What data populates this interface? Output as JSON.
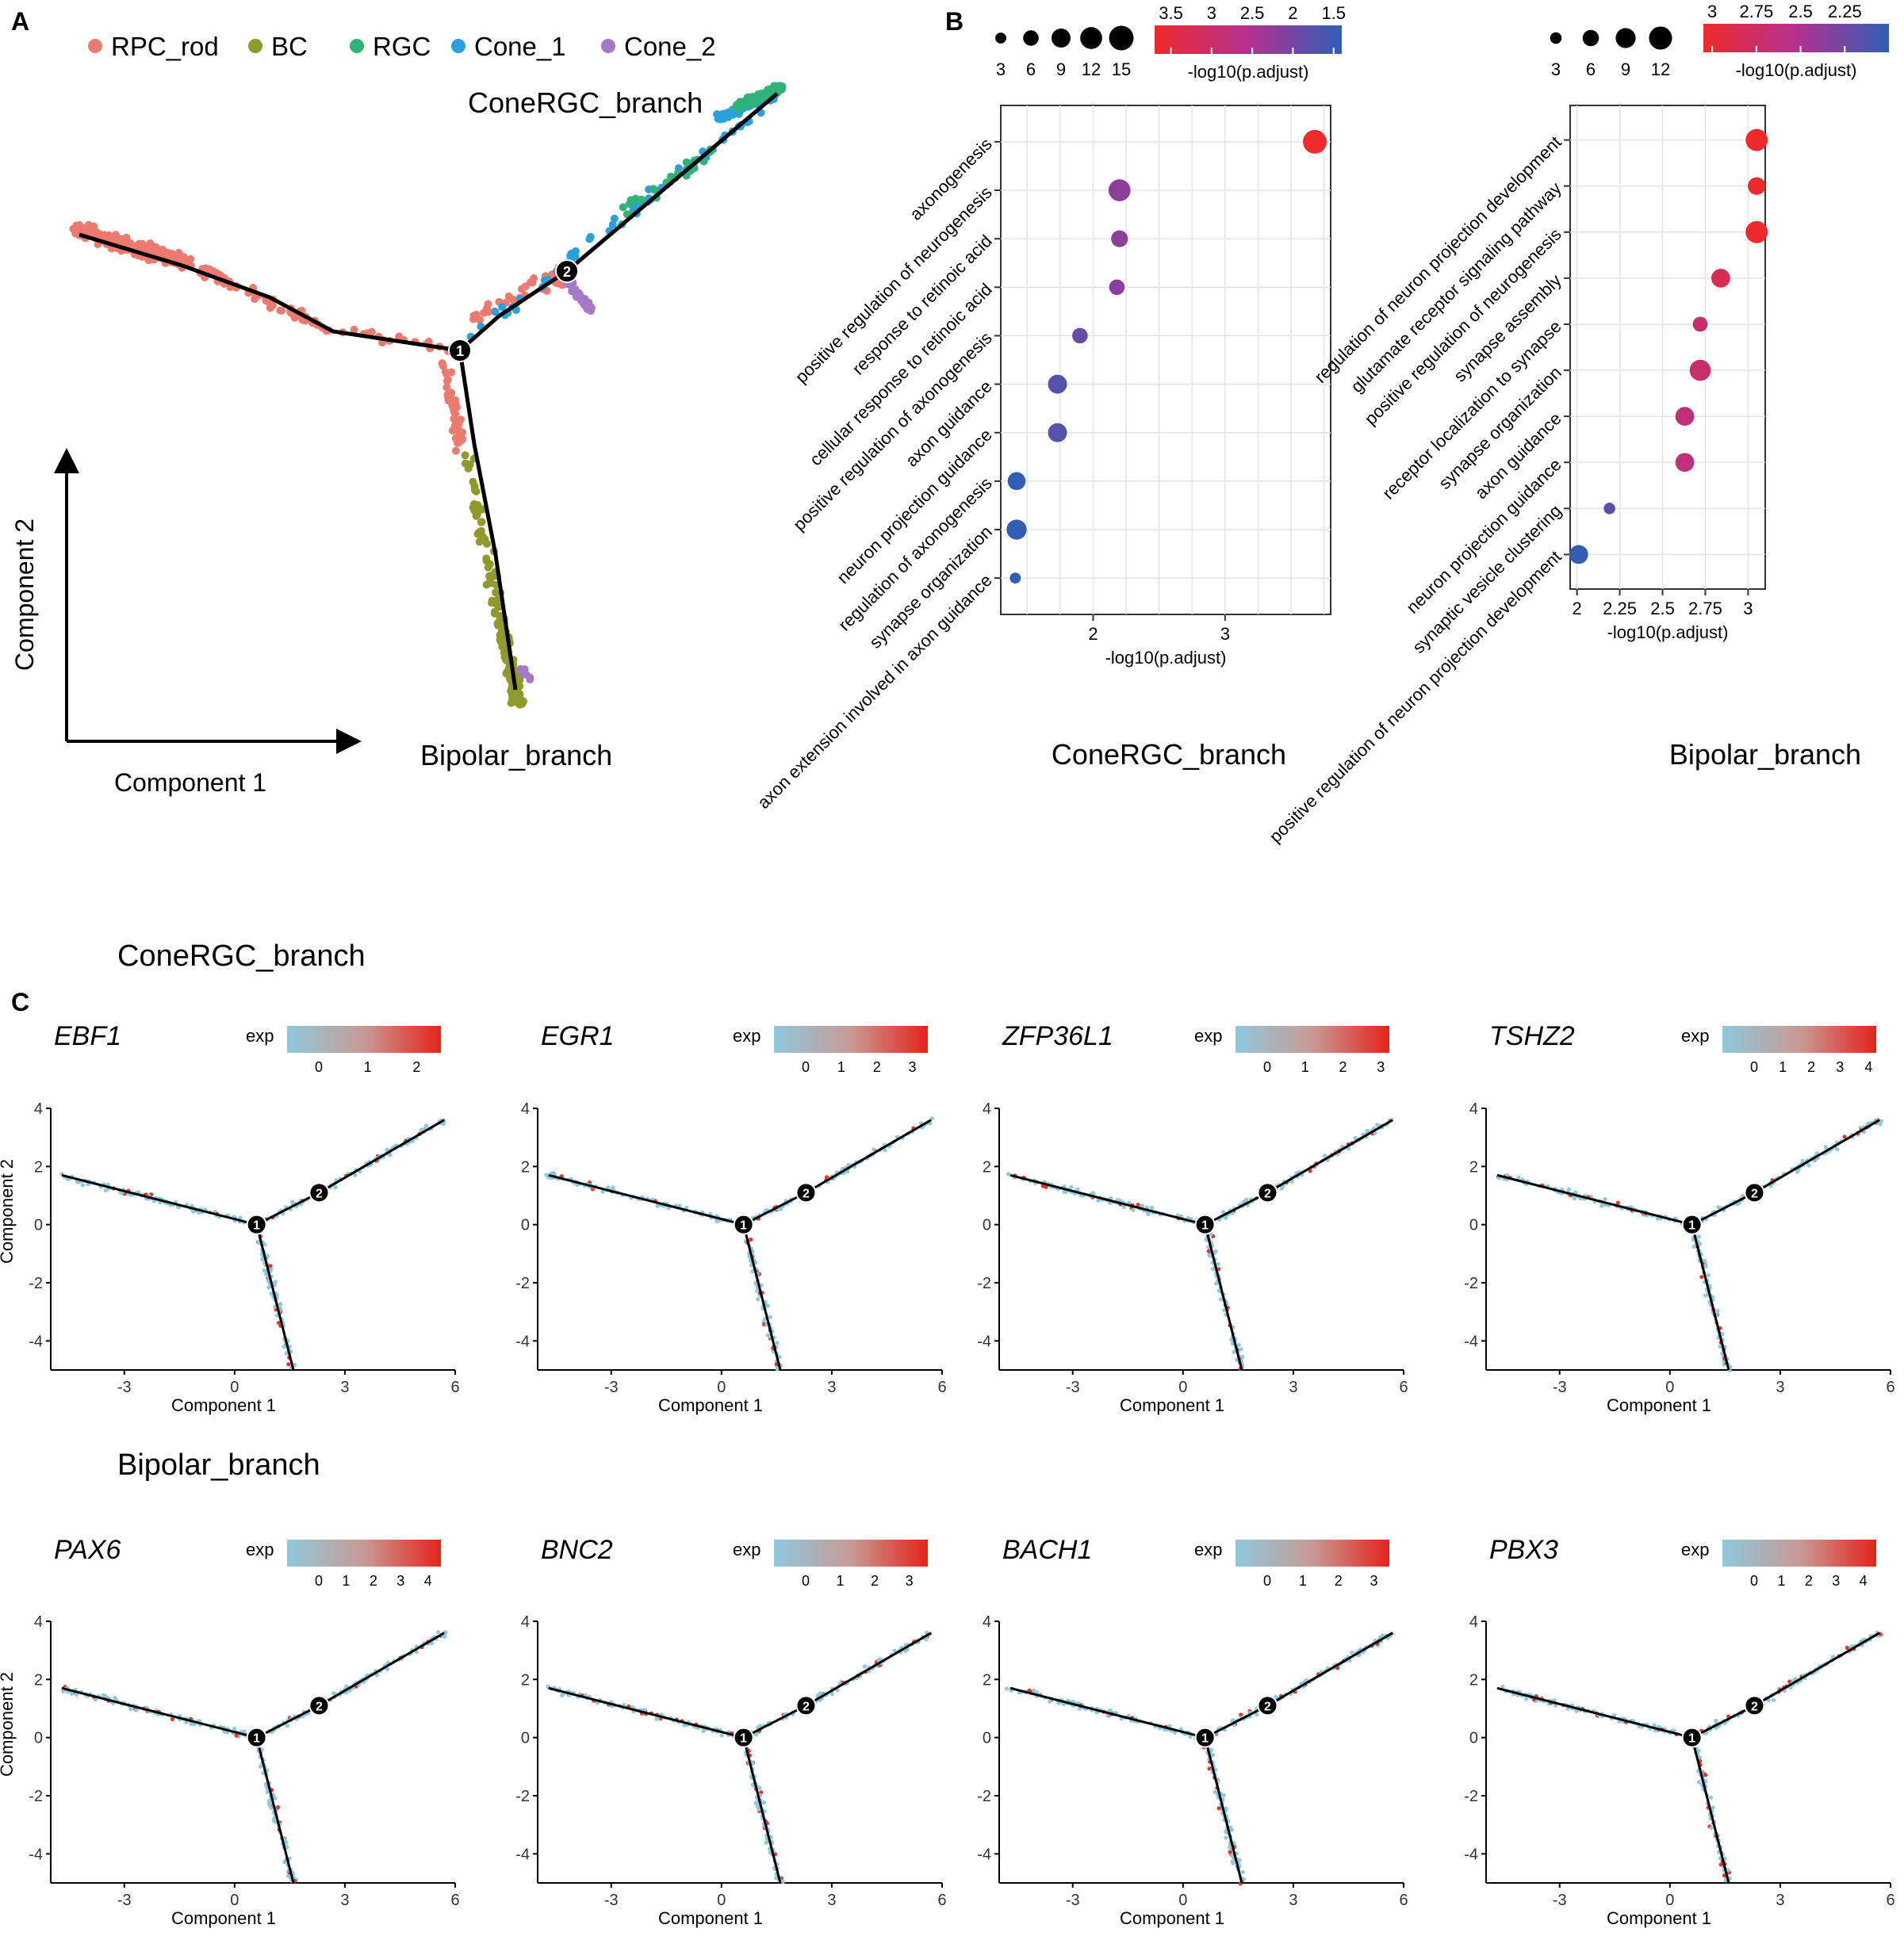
{
  "panels": {
    "A": "A",
    "B": "B",
    "C": "C"
  },
  "panelA": {
    "legend": [
      {
        "label": "RPC_rod",
        "color": "#ec7a6e"
      },
      {
        "label": "BC",
        "color": "#8f9a2a"
      },
      {
        "label": "RGC",
        "color": "#2fb37a"
      },
      {
        "label": "Cone_1",
        "color": "#2aa0dd"
      },
      {
        "label": "Cone_2",
        "color": "#a679c6"
      }
    ],
    "branch_top": "ConeRGC_branch",
    "branch_bottom": "Bipolar_branch",
    "axis_x": "Component 1",
    "axis_y": "Component 2",
    "node1": "1",
    "node2": "2"
  },
  "chart_data": [
    {
      "type": "scatter",
      "panel": "B-left",
      "title": "ConeRGC_branch",
      "xlabel": "-log10(p.adjust)",
      "xlim": [
        1.3,
        3.8
      ],
      "xticks": [
        2,
        3
      ],
      "size_legend": {
        "values": [
          3,
          6,
          9,
          12,
          15
        ]
      },
      "color_legend": {
        "title": "-log10(p.adjust)",
        "ticks": [
          3.5,
          3.0,
          2.5,
          2.0,
          1.5
        ],
        "range": [
          3.7,
          1.4
        ]
      },
      "terms": [
        {
          "term": "axonogenesis",
          "x": 3.68,
          "count": 14
        },
        {
          "term": "positive regulation of neurogenesis",
          "x": 2.2,
          "count": 12
        },
        {
          "term": "response to retinoic acid",
          "x": 2.2,
          "count": 7
        },
        {
          "term": "cellular response to retinoic acid",
          "x": 2.18,
          "count": 6
        },
        {
          "term": "positive regulation of axonogenesis",
          "x": 1.9,
          "count": 6
        },
        {
          "term": "axon guidance",
          "x": 1.73,
          "count": 9
        },
        {
          "term": "neuron projection guidance",
          "x": 1.73,
          "count": 9
        },
        {
          "term": "regulation of axonogenesis",
          "x": 1.42,
          "count": 8
        },
        {
          "term": "synapse organization",
          "x": 1.42,
          "count": 10
        },
        {
          "term": "axon extension involved in axon guidance",
          "x": 1.41,
          "count": 3
        }
      ]
    },
    {
      "type": "scatter",
      "panel": "B-right",
      "title": "Bipolar_branch",
      "xlabel": "-log10(p.adjust)",
      "xlim": [
        1.96,
        3.1
      ],
      "xticks": [
        2.0,
        2.25,
        2.5,
        2.75,
        3.0
      ],
      "size_legend": {
        "values": [
          3,
          6,
          9,
          12
        ]
      },
      "color_legend": {
        "title": "-log10(p.adjust)",
        "ticks": [
          3.0,
          2.75,
          2.5,
          2.25
        ],
        "range": [
          3.05,
          2.0
        ]
      },
      "terms": [
        {
          "term": "regulation of neuron projection development",
          "x": 3.05,
          "count": 11
        },
        {
          "term": "glutamate receptor signaling pathway",
          "x": 3.05,
          "count": 7
        },
        {
          "term": "positive regulation of neurogenesis",
          "x": 3.05,
          "count": 11
        },
        {
          "term": "synapse assembly",
          "x": 2.84,
          "count": 8
        },
        {
          "term": "receptor localization to synapse",
          "x": 2.72,
          "count": 5
        },
        {
          "term": "synapse organization",
          "x": 2.72,
          "count": 10
        },
        {
          "term": "axon guidance",
          "x": 2.63,
          "count": 8
        },
        {
          "term": "neuron projection guidance",
          "x": 2.63,
          "count": 8
        },
        {
          "term": "synaptic vesicle clustering",
          "x": 2.19,
          "count": 3
        },
        {
          "term": "positive regulation of neuron projection development",
          "x": 2.01,
          "count": 8
        }
      ]
    },
    {
      "type": "scatter",
      "panel": "C",
      "xlabel": "Component 1",
      "ylabel": "Component 2",
      "xlim": [
        -5,
        6
      ],
      "ylim": [
        -5,
        4
      ],
      "xticks": [
        -3,
        0,
        3,
        6
      ],
      "yticks": [
        4,
        2,
        0,
        -2,
        -4
      ],
      "legend_title": "exp",
      "groups": [
        {
          "title": "ConeRGC_branch",
          "genes": [
            {
              "gene": "EBF1",
              "max": 2.4,
              "ticks": [
                0,
                1,
                2
              ]
            },
            {
              "gene": "EGR1",
              "max": 3.3,
              "ticks": [
                0,
                1,
                2,
                3
              ]
            },
            {
              "gene": "ZFP36L1",
              "max": 3.1,
              "ticks": [
                0,
                1,
                2,
                3
              ]
            },
            {
              "gene": "TSHZ2",
              "max": 4.1,
              "ticks": [
                0,
                1,
                2,
                3,
                4
              ]
            }
          ]
        },
        {
          "title": "Bipolar_branch",
          "genes": [
            {
              "gene": "PAX6",
              "max": 4.3,
              "ticks": [
                0,
                1,
                2,
                3,
                4
              ]
            },
            {
              "gene": "BNC2",
              "max": 3.4,
              "ticks": [
                0,
                1,
                2,
                3
              ]
            },
            {
              "gene": "BACH1",
              "max": 3.3,
              "ticks": [
                0,
                1,
                2,
                3
              ]
            },
            {
              "gene": "PBX3",
              "max": 4.3,
              "ticks": [
                0,
                1,
                2,
                3,
                4
              ]
            }
          ]
        }
      ]
    }
  ]
}
